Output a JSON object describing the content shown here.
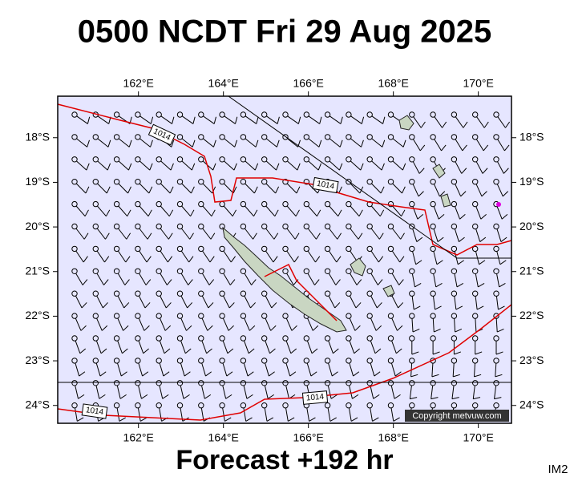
{
  "title": "0500 NCDT Fri 29 Aug 2025",
  "map": {
    "xlim": [
      160.1,
      170.78
    ],
    "ylim": [
      -24.4,
      -17.07
    ],
    "xticks": [
      {
        "value": 162,
        "label": "162°E"
      },
      {
        "value": 164,
        "label": "164°E"
      },
      {
        "value": 166,
        "label": "166°E"
      },
      {
        "value": 168,
        "label": "168°E"
      },
      {
        "value": 170,
        "label": "170°E"
      }
    ],
    "yticks": [
      {
        "value": -18,
        "label": "18°S"
      },
      {
        "value": -19,
        "label": "19°S"
      },
      {
        "value": -20,
        "label": "20°S"
      },
      {
        "value": -21,
        "label": "21°S"
      },
      {
        "value": -22,
        "label": "22°S"
      },
      {
        "value": -23,
        "label": "23°S"
      },
      {
        "value": -24,
        "label": "24°S"
      }
    ]
  },
  "isobar_labels": [
    "1014",
    "1014",
    "1014",
    "1014"
  ],
  "copyright": "Copyright metvuw.com",
  "footer": "Forecast +192 hr",
  "corner_label": "IM2"
}
